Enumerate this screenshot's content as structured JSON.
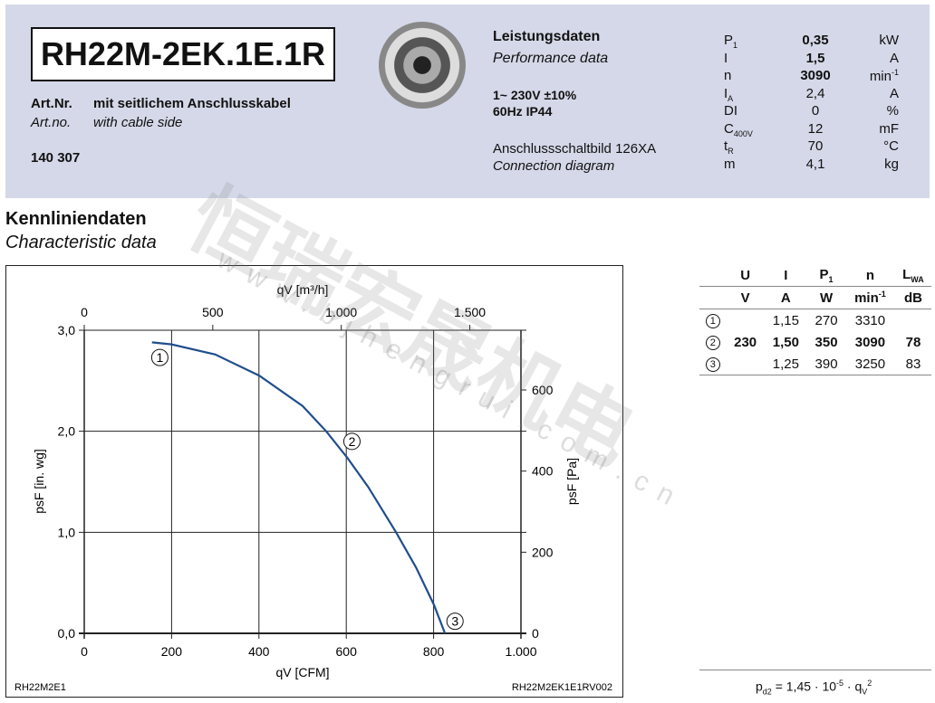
{
  "header": {
    "model": "RH22M-2EK.1E.1R",
    "artnr_label": "Art.Nr.",
    "artnr_desc": "mit seitlichem Anschlusskabel",
    "artno_label": "Art.no.",
    "artno_desc": "with cable side",
    "number": "140 307",
    "perf_de": "Leistungsdaten",
    "perf_en": "Performance data",
    "voltage": "1~ 230V ±10%",
    "freq": "60Hz  IP44",
    "conn_de": "Anschlussschaltbild 126XA",
    "conn_en": "Connection diagram"
  },
  "specs": [
    {
      "sym": "P",
      "sub": "1",
      "val": "0,35",
      "unit": "kW",
      "bold": true
    },
    {
      "sym": "I",
      "sub": "",
      "val": "1,5",
      "unit": "A",
      "bold": true
    },
    {
      "sym": "n",
      "sub": "",
      "val": "3090",
      "unit": "min",
      "sup": "-1",
      "bold": true
    },
    {
      "sym": "I",
      "sub": "A",
      "val": "2,4",
      "unit": "A"
    },
    {
      "sym": "DI",
      "sub": "",
      "val": "0",
      "unit": "%"
    },
    {
      "sym": "C",
      "sub": "400V",
      "val": "12",
      "unit": "mF"
    },
    {
      "sym": "t",
      "sub": "R",
      "val": "70",
      "unit": "°C"
    },
    {
      "sym": "m",
      "sub": "",
      "val": "4,1",
      "unit": "kg"
    }
  ],
  "section": {
    "title_de": "Kennliniendaten",
    "title_en": "Characteristic data"
  },
  "table": {
    "head1": [
      "U",
      "I",
      "P1",
      "n",
      "LWA"
    ],
    "head2": [
      "V",
      "A",
      "W",
      "min-1",
      "dB"
    ],
    "rows": [
      [
        "1",
        "",
        "1,15",
        "270",
        "3310",
        ""
      ],
      [
        "2",
        "230",
        "1,50",
        "350",
        "3090",
        "78"
      ],
      [
        "3",
        "",
        "1,25",
        "390",
        "3250",
        "83"
      ]
    ],
    "formula": "pd2 = 1,45 · 10-5 · qV2"
  },
  "watermark": {
    "cn": "恒瑞宏晟机电",
    "url": "www.bjhengrui.com.cn"
  },
  "chart_data": {
    "type": "line",
    "xlabel": "qV [CFM]",
    "x2label": "qV [m³/h]",
    "ylabel": "psF [in. wg]",
    "y2label": "psF [Pa]",
    "xlim": [
      0,
      1000
    ],
    "ylim": [
      0,
      3
    ],
    "xticks": [
      "0",
      "200",
      "400",
      "600",
      "800",
      "1.000"
    ],
    "x2ticks": [
      "0",
      "500",
      "1.000",
      "1.500"
    ],
    "yticks": [
      "0,0",
      "1,0",
      "2,0",
      "3,0"
    ],
    "y2ticks": [
      "0",
      "200",
      "400",
      "600"
    ],
    "grid": true,
    "color": "#1f4e8c",
    "series": [
      {
        "x": [
          155,
          200,
          300,
          401,
          500,
          554,
          602,
          650,
          714,
          760,
          801,
          826
        ],
        "y": [
          2.88,
          2.86,
          2.76,
          2.55,
          2.25,
          2.0,
          1.74,
          1.45,
          1.0,
          0.65,
          0.28,
          0
        ]
      }
    ],
    "markers": [
      {
        "label": "1",
        "x": 173,
        "y": 2.73
      },
      {
        "label": "2",
        "x": 613,
        "y": 1.9
      },
      {
        "label": "3",
        "x": 849,
        "y": 0.12
      }
    ],
    "footer_left": "RH22M2E1",
    "footer_right": "RH22M2EK1E1RV002"
  }
}
